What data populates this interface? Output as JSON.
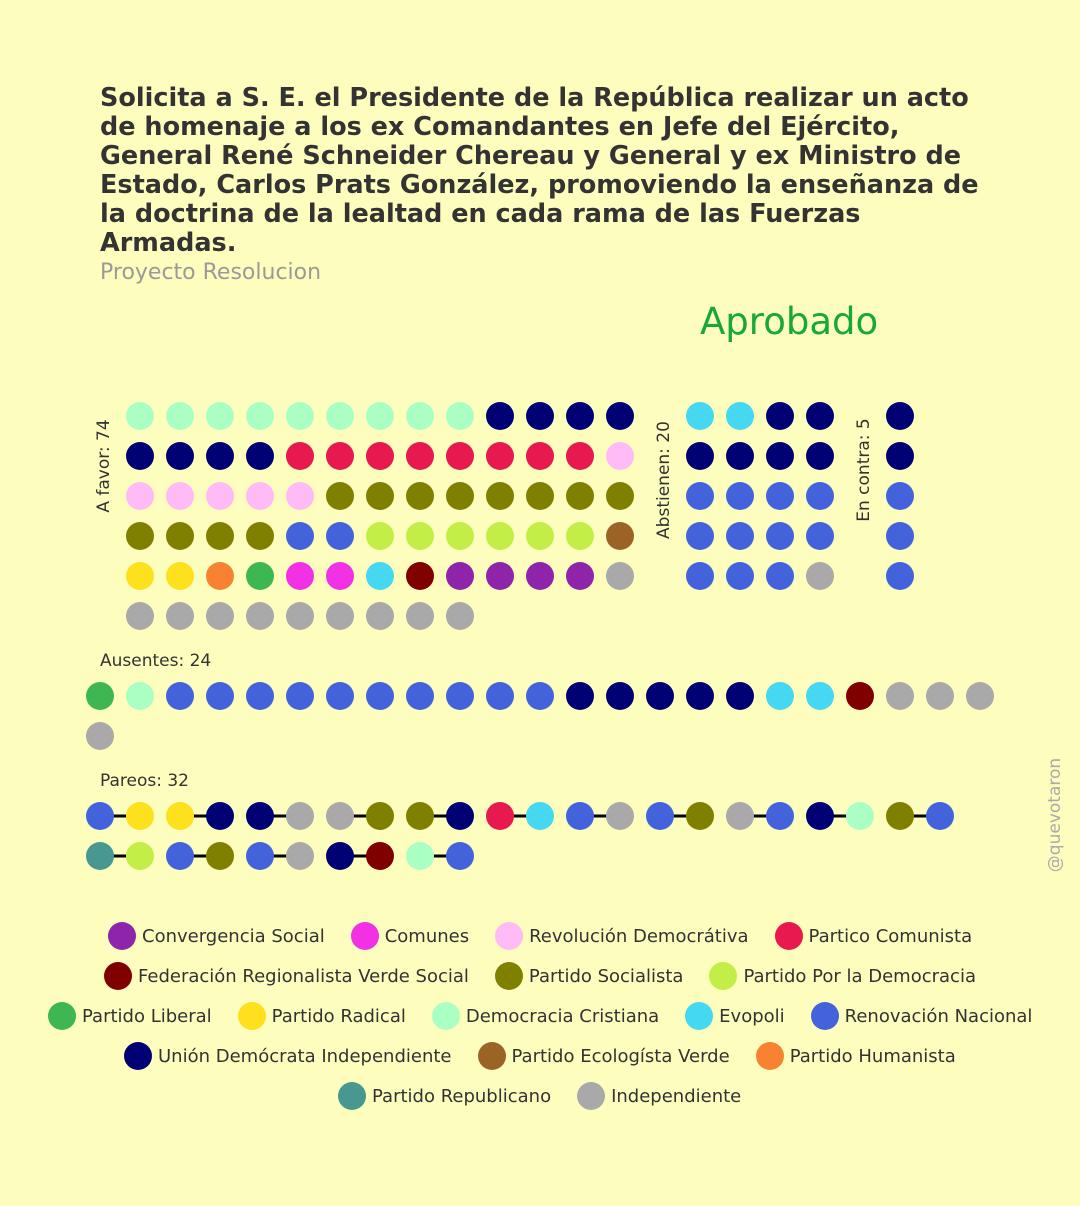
{
  "title": "Solicita a S. E. el Presidente de la República realizar un acto de homenaje a los ex Comandantes en Jefe del Ejército, General René Schneider Chereau y General y ex Ministro de Estado, Carlos Prats González, promoviendo la enseñanza de la doctrina de la lealtad en cada rama de las Fuerzas Armadas.",
  "subtitle": "Proyecto Resolucion",
  "result": "Aprobado",
  "credit": "@quevotaron",
  "colors": {
    "background": "#FDFDBE",
    "result": "#18A83A",
    "pair_line": "#000000"
  },
  "chart_data": {
    "type": "dot-grid",
    "groups": {
      "a_favor": {
        "label": "A favor: 74",
        "count": 74,
        "rows": [
          [
            "Democracia Cristiana",
            "Democracia Cristiana",
            "Democracia Cristiana",
            "Democracia Cristiana",
            "Democracia Cristiana",
            "Democracia Cristiana",
            "Democracia Cristiana",
            "Democracia Cristiana",
            "Democracia Cristiana",
            "Unión Demócrata Independiente",
            "Unión Demócrata Independiente",
            "Unión Demócrata Independiente",
            "Unión Demócrata Independiente"
          ],
          [
            "Unión Demócrata Independiente",
            "Unión Demócrata Independiente",
            "Unión Demócrata Independiente",
            "Unión Demócrata Independiente",
            "Partico Comunista",
            "Partico Comunista",
            "Partico Comunista",
            "Partico Comunista",
            "Partico Comunista",
            "Partico Comunista",
            "Partico Comunista",
            "Partico Comunista",
            "Revolución Democrátiva"
          ],
          [
            "Revolución Democrátiva",
            "Revolución Democrátiva",
            "Revolución Democrátiva",
            "Revolución Democrátiva",
            "Revolución Democrátiva",
            "Partido Socialista",
            "Partido Socialista",
            "Partido Socialista",
            "Partido Socialista",
            "Partido Socialista",
            "Partido Socialista",
            "Partido Socialista",
            "Partido Socialista"
          ],
          [
            "Partido Socialista",
            "Partido Socialista",
            "Partido Socialista",
            "Partido Socialista",
            "Renovación Nacional",
            "Renovación Nacional",
            "Partido Por la Democracia",
            "Partido Por la Democracia",
            "Partido Por la Democracia",
            "Partido Por la Democracia",
            "Partido Por la Democracia",
            "Partido Por la Democracia",
            "Partido Ecologísta Verde"
          ],
          [
            "Partido Radical",
            "Partido Radical",
            "Partido Humanista",
            "Partido Liberal",
            "Comunes",
            "Comunes",
            "Evopoli",
            "Federación Regionalista Verde Social",
            "Convergencia Social",
            "Convergencia Social",
            "Convergencia Social",
            "Convergencia Social",
            "Independiente"
          ],
          [
            "Independiente",
            "Independiente",
            "Independiente",
            "Independiente",
            "Independiente",
            "Independiente",
            "Independiente",
            "Independiente",
            "Independiente"
          ]
        ]
      },
      "abstienen": {
        "label": "Abstienen: 20",
        "count": 20,
        "rows": [
          [
            "Evopoli",
            "Evopoli",
            "Unión Demócrata Independiente",
            "Unión Demócrata Independiente"
          ],
          [
            "Unión Demócrata Independiente",
            "Unión Demócrata Independiente",
            "Unión Demócrata Independiente",
            "Unión Demócrata Independiente"
          ],
          [
            "Renovación Nacional",
            "Renovación Nacional",
            "Renovación Nacional",
            "Renovación Nacional"
          ],
          [
            "Renovación Nacional",
            "Renovación Nacional",
            "Renovación Nacional",
            "Renovación Nacional"
          ],
          [
            "Renovación Nacional",
            "Renovación Nacional",
            "Renovación Nacional",
            "Independiente"
          ]
        ]
      },
      "en_contra": {
        "label": "En contra: 5",
        "count": 5,
        "rows": [
          [
            "Unión Demócrata Independiente"
          ],
          [
            "Unión Demócrata Independiente"
          ],
          [
            "Renovación Nacional"
          ],
          [
            "Renovación Nacional"
          ],
          [
            "Renovación Nacional"
          ]
        ]
      },
      "ausentes": {
        "label": "Ausentes: 24",
        "count": 24,
        "rows": [
          [
            "Partido Liberal",
            "Democracia Cristiana",
            "Renovación Nacional",
            "Renovación Nacional",
            "Renovación Nacional",
            "Renovación Nacional",
            "Renovación Nacional",
            "Renovación Nacional",
            "Renovación Nacional",
            "Renovación Nacional",
            "Renovación Nacional",
            "Renovación Nacional",
            "Unión Demócrata Independiente",
            "Unión Demócrata Independiente",
            "Unión Demócrata Independiente",
            "Unión Demócrata Independiente",
            "Unión Demócrata Independiente",
            "Evopoli",
            "Evopoli",
            "Federación Regionalista Verde Social",
            "Independiente",
            "Independiente",
            "Independiente"
          ],
          [
            "Independiente"
          ]
        ]
      },
      "pareos": {
        "label": "Pareos: 32",
        "count": 32,
        "rows": [
          [
            "Renovación Nacional",
            "Partido Radical",
            "Partido Radical",
            "Unión Demócrata Independiente",
            "Unión Demócrata Independiente",
            "Independiente",
            "Independiente",
            "Partido Socialista",
            "Partido Socialista",
            "Unión Demócrata Independiente",
            "Partico Comunista",
            "Evopoli",
            "Renovación Nacional",
            "Independiente",
            "Renovación Nacional",
            "Partido Socialista",
            "Independiente",
            "Renovación Nacional",
            "Unión Demócrata Independiente",
            "Democracia Cristiana",
            "Partido Socialista",
            "Renovación Nacional"
          ],
          [
            "Partido Republicano",
            "Partido Por la Democracia",
            "Renovación Nacional",
            "Partido Socialista",
            "Renovación Nacional",
            "Independiente",
            "Unión Demócrata Independiente",
            "Federación Regionalista Verde Social",
            "Democracia Cristiana",
            "Renovación Nacional"
          ]
        ]
      }
    },
    "legend": [
      {
        "name": "Convergencia Social",
        "color": "#8E24AA"
      },
      {
        "name": "Comunes",
        "color": "#F230E4"
      },
      {
        "name": "Revolución Democrátiva",
        "color": "#FFBBF6"
      },
      {
        "name": "Partico Comunista",
        "color": "#E8194F"
      },
      {
        "name": "Federación Regionalista Verde Social",
        "color": "#800000"
      },
      {
        "name": "Partido Socialista",
        "color": "#7F7F00"
      },
      {
        "name": "Partido Por la Democracia",
        "color": "#C2EE45"
      },
      {
        "name": "Partido Liberal",
        "color": "#3EB651"
      },
      {
        "name": "Partido Radical",
        "color": "#FEE11C"
      },
      {
        "name": "Democracia Cristiana",
        "color": "#AAFFC3"
      },
      {
        "name": "Evopoli",
        "color": "#44D8F2"
      },
      {
        "name": "Renovación Nacional",
        "color": "#4462DB"
      },
      {
        "name": "Unión Demócrata Independiente",
        "color": "#000075"
      },
      {
        "name": "Partido Ecologísta Verde",
        "color": "#9C6326"
      },
      {
        "name": "Partido Humanista",
        "color": "#F68232"
      },
      {
        "name": "Partido Republicano",
        "color": "#469891"
      },
      {
        "name": "Independiente",
        "color": "#A9A9A9"
      }
    ]
  }
}
